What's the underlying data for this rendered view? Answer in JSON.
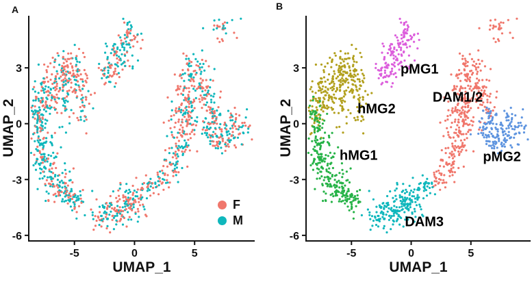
{
  "chart_data": {
    "type": "scatter",
    "description": "Two-panel UMAP scatter figure of microglia single cells. Panel A colored by sex (F/M), panel B colored by cluster identity.",
    "panels": [
      {
        "label": "A",
        "xlabel": "UMAP_1",
        "ylabel": "UMAP_2",
        "xlim": [
          -8.8,
          10.0
        ],
        "ylim": [
          -6.3,
          5.8
        ],
        "xticks": [
          -5,
          0,
          5
        ],
        "yticks": [
          3,
          0,
          -3,
          -6
        ],
        "color_by": "sex",
        "legend_position": "bottom-right",
        "legend": [
          {
            "name": "F",
            "color": "#F0776C"
          },
          {
            "name": "M",
            "color": "#0FB7BC"
          }
        ]
      },
      {
        "label": "B",
        "xlabel": "UMAP_1",
        "ylabel": "UMAP_2",
        "xlim": [
          -8.8,
          10.0
        ],
        "ylim": [
          -6.3,
          5.8
        ],
        "xticks": [
          -5,
          0,
          5
        ],
        "yticks": [
          3,
          0,
          -3,
          -6
        ],
        "color_by": "cluster",
        "cluster_labels": [
          {
            "name": "pMG1",
            "x": 0.7,
            "y": 2.9
          },
          {
            "name": "hMG2",
            "x": -2.9,
            "y": 0.75
          },
          {
            "name": "hMG1",
            "x": -4.4,
            "y": -1.75
          },
          {
            "name": "DAM3",
            "x": 1.1,
            "y": -5.3
          },
          {
            "name": "DAM1/2",
            "x": 3.9,
            "y": 1.4
          },
          {
            "name": "pMG2",
            "x": 7.6,
            "y": -1.8
          }
        ]
      }
    ],
    "blob_schema": "[center_x, center_y, sd_x, sd_y, n_points, fraction_F]",
    "clusters": [
      {
        "name": "hMG2",
        "color": "#B2A01E",
        "blobs": [
          [
            -7.9,
            0.6,
            0.4,
            0.7,
            45,
            0.45
          ],
          [
            -7.2,
            1.7,
            0.5,
            0.7,
            60,
            0.55
          ],
          [
            -6.2,
            2.5,
            0.6,
            0.55,
            65,
            0.7
          ],
          [
            -5.2,
            3.0,
            0.55,
            0.45,
            55,
            0.75
          ],
          [
            -4.4,
            2.1,
            0.5,
            0.6,
            40,
            0.65
          ],
          [
            -5.8,
            1.1,
            0.8,
            0.8,
            45,
            0.4
          ],
          [
            -4.4,
            0.7,
            0.45,
            0.65,
            20,
            0.5
          ]
        ]
      },
      {
        "name": "hMG1",
        "color": "#27B348",
        "blobs": [
          [
            -8.1,
            -0.3,
            0.35,
            0.7,
            55,
            0.3
          ],
          [
            -7.6,
            -1.5,
            0.45,
            0.8,
            70,
            0.3
          ],
          [
            -6.8,
            -2.7,
            0.55,
            0.7,
            65,
            0.38
          ],
          [
            -5.8,
            -3.5,
            0.55,
            0.5,
            55,
            0.45
          ],
          [
            -4.9,
            -4.0,
            0.4,
            0.35,
            35,
            0.5
          ]
        ]
      },
      {
        "name": "DAM1/2",
        "color": "#F0776C",
        "blobs": [
          [
            4.9,
            2.8,
            0.7,
            0.5,
            55,
            0.6
          ],
          [
            4.6,
            1.5,
            0.8,
            0.65,
            70,
            0.6
          ],
          [
            4.3,
            0.2,
            0.75,
            0.65,
            70,
            0.58
          ],
          [
            3.9,
            -1.1,
            0.55,
            0.6,
            50,
            0.58
          ],
          [
            3.1,
            -2.2,
            0.4,
            0.45,
            35,
            0.55
          ],
          [
            2.3,
            -2.9,
            0.3,
            0.3,
            22,
            0.5
          ],
          [
            5.9,
            2.0,
            0.5,
            0.5,
            30,
            0.6
          ],
          [
            6.3,
            0.9,
            0.45,
            0.45,
            25,
            0.6
          ],
          [
            7.3,
            5.0,
            0.55,
            0.5,
            30,
            0.55
          ]
        ]
      },
      {
        "name": "pMG2",
        "color": "#5E94DF",
        "blobs": [
          [
            7.6,
            -0.3,
            0.8,
            0.5,
            75,
            0.55
          ],
          [
            6.8,
            -0.9,
            0.5,
            0.4,
            40,
            0.55
          ],
          [
            8.7,
            -0.1,
            0.45,
            0.4,
            30,
            0.55
          ],
          [
            6.6,
            0.4,
            0.4,
            0.35,
            20,
            0.55
          ]
        ]
      },
      {
        "name": "pMG1",
        "color": "#DC5EDC",
        "blobs": [
          [
            -0.5,
            4.6,
            0.55,
            0.5,
            55,
            0.55
          ],
          [
            -1.3,
            3.6,
            0.55,
            0.5,
            55,
            0.55
          ],
          [
            -2.1,
            2.8,
            0.45,
            0.4,
            40,
            0.55
          ]
        ]
      },
      {
        "name": "DAM3",
        "color": "#0FB7BC",
        "blobs": [
          [
            -2.1,
            -4.8,
            0.8,
            0.5,
            85,
            0.5
          ],
          [
            -1.0,
            -4.5,
            0.65,
            0.5,
            60,
            0.5
          ],
          [
            0.1,
            -4.0,
            0.5,
            0.45,
            45,
            0.5
          ],
          [
            1.2,
            -3.3,
            0.4,
            0.35,
            30,
            0.55
          ]
        ]
      }
    ]
  }
}
